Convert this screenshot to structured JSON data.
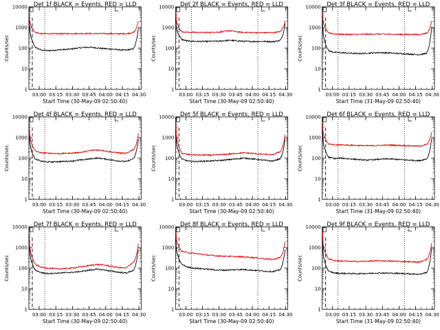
{
  "chart_data": [
    {
      "type": "line",
      "title": "Det 1f BLACK = Events, RED = LLD",
      "xlabel": "Start Time (30-May-09 02:50:40)",
      "ylabel": "Counts/sec",
      "yscale": "log",
      "ylim": [
        1,
        10000
      ],
      "yticks": [
        "1",
        "10",
        "100",
        "1000",
        "10000"
      ],
      "xticks": [
        "03:00",
        "03:15",
        "03:30",
        "03:45",
        "04:00",
        "04:15",
        "04:30"
      ],
      "dotted_lines": [
        "03:05",
        "04:05"
      ],
      "series": [
        {
          "color": "#000000",
          "y": [
            3000,
            110,
            80,
            76,
            78,
            84,
            86,
            92,
            100,
            108,
            110,
            104,
            96,
            92,
            88,
            82,
            80,
            90,
            900
          ]
        },
        {
          "color": "#dd0000",
          "y": [
            5500,
            580,
            500,
            500,
            500,
            500,
            505,
            505,
            510,
            510,
            510,
            510,
            505,
            505,
            500,
            500,
            500,
            560,
            2100
          ]
        }
      ]
    },
    {
      "type": "line",
      "title": "Det 2f BLACK = Events, RED = LLD",
      "xlabel": "Start Time (30-May-09 02:50:40)",
      "ylabel": "Counts/sec",
      "yscale": "log",
      "ylim": [
        1,
        10000
      ],
      "yticks": [
        "1",
        "10",
        "100",
        "1000",
        "10000"
      ],
      "xticks": [
        "03:00",
        "03:15",
        "03:30",
        "03:45",
        "04:00",
        "04:15",
        "04:30"
      ],
      "dotted_lines": [
        "03:05",
        "04:05"
      ],
      "series": [
        {
          "color": "#000000",
          "y": [
            3000,
            260,
            220,
            215,
            210,
            210,
            215,
            215,
            230,
            240,
            225,
            215,
            210,
            210,
            210,
            210,
            205,
            230,
            1500
          ]
        },
        {
          "color": "#dd0000",
          "y": [
            5500,
            620,
            580,
            590,
            560,
            570,
            580,
            590,
            650,
            700,
            620,
            580,
            570,
            560,
            560,
            560,
            560,
            620,
            2100
          ]
        }
      ]
    },
    {
      "type": "line",
      "title": "Det 3f BLACK = Events, RED = LLD",
      "xlabel": "Start Time (31-May-09 02:50:40)",
      "ylabel": "Counts/sec",
      "yscale": "log",
      "ylim": [
        1,
        10000
      ],
      "yticks": [
        "1",
        "10",
        "100",
        "1000",
        "10000"
      ],
      "xticks": [
        "03:00",
        "03:15",
        "03:30",
        "03:45",
        "04:00",
        "04:15",
        "04:30"
      ],
      "dotted_lines": [
        "03:05",
        "04:05"
      ],
      "series": [
        {
          "color": "#000000",
          "y": [
            2500,
            75,
            62,
            60,
            58,
            56,
            54,
            56,
            58,
            60,
            60,
            58,
            56,
            54,
            52,
            50,
            48,
            55,
            1000
          ]
        },
        {
          "color": "#dd0000",
          "y": [
            5500,
            560,
            480,
            470,
            460,
            460,
            460,
            470,
            470,
            480,
            480,
            470,
            460,
            460,
            460,
            460,
            450,
            520,
            2100
          ]
        }
      ]
    },
    {
      "type": "line",
      "title": "Det 4f BLACK = Events, RED = LLD",
      "xlabel": "Start Time (30-May-09 02:50:40)",
      "ylabel": "Counts/sec",
      "yscale": "log",
      "ylim": [
        1,
        10000
      ],
      "yticks": [
        "1",
        "10",
        "100",
        "1000",
        "10000"
      ],
      "xticks": [
        "03:00",
        "03:15",
        "03:30",
        "03:45",
        "04:00",
        "04:15",
        "04:30"
      ],
      "dotted_lines": [
        "03:05",
        "04:05"
      ],
      "series": [
        {
          "color": "#000000",
          "y": [
            2500,
            90,
            70,
            65,
            66,
            68,
            70,
            72,
            78,
            84,
            92,
            100,
            96,
            86,
            78,
            72,
            68,
            90,
            800
          ]
        },
        {
          "color": "#dd0000",
          "y": [
            5000,
            220,
            180,
            175,
            170,
            165,
            170,
            175,
            185,
            200,
            230,
            250,
            240,
            210,
            190,
            175,
            170,
            250,
            1500
          ]
        }
      ]
    },
    {
      "type": "line",
      "title": "Det 5f BLACK = Events, RED = LLD",
      "xlabel": "Start Time (30-May-09 02:50:40)",
      "ylabel": "Counts/sec",
      "yscale": "log",
      "ylim": [
        1,
        10000
      ],
      "yticks": [
        "1",
        "10",
        "100",
        "1000",
        "10000"
      ],
      "xticks": [
        "03:00",
        "03:15",
        "03:30",
        "03:45",
        "04:00",
        "04:15",
        "04:30"
      ],
      "dotted_lines": [
        "03:05",
        "04:05"
      ],
      "series": [
        {
          "color": "#000000",
          "y": [
            2500,
            90,
            72,
            68,
            70,
            72,
            74,
            76,
            80,
            86,
            92,
            100,
            96,
            90,
            82,
            76,
            72,
            90,
            800
          ]
        },
        {
          "color": "#dd0000",
          "y": [
            5000,
            170,
            150,
            145,
            140,
            140,
            140,
            145,
            150,
            160,
            170,
            180,
            175,
            165,
            155,
            150,
            145,
            200,
            1300
          ]
        }
      ]
    },
    {
      "type": "line",
      "title": "Det 6f BLACK = Events, RED = LLD",
      "xlabel": "Start Time (31-May-09 02:50:40)",
      "ylabel": "Counts/sec",
      "yscale": "log",
      "ylim": [
        1,
        10000
      ],
      "yticks": [
        "1",
        "10",
        "100",
        "1000",
        "10000"
      ],
      "xticks": [
        "03:00",
        "03:15",
        "03:30",
        "03:45",
        "04:00",
        "04:15",
        "04:30"
      ],
      "dotted_lines": [
        "03:05",
        "04:05"
      ],
      "series": [
        {
          "color": "#000000",
          "y": [
            2500,
            110,
            95,
            100,
            95,
            90,
            85,
            80,
            82,
            86,
            90,
            92,
            88,
            84,
            80,
            78,
            75,
            90,
            900
          ]
        },
        {
          "color": "#dd0000",
          "y": [
            5500,
            480,
            430,
            440,
            430,
            420,
            410,
            400,
            400,
            410,
            420,
            430,
            420,
            410,
            400,
            390,
            380,
            450,
            1800
          ]
        }
      ]
    },
    {
      "type": "line",
      "title": "Det 7f BLACK = Events, RED = LLD",
      "xlabel": "Start Time (30-May-09 02:50:40)",
      "ylabel": "Counts/sec",
      "yscale": "log",
      "ylim": [
        1,
        10000
      ],
      "yticks": [
        "1",
        "10",
        "100",
        "1000",
        "10000"
      ],
      "xticks": [
        "03:00",
        "03:15",
        "03:30",
        "03:45",
        "04:00",
        "04:15",
        "04:30"
      ],
      "dotted_lines": [
        "03:05",
        "04:05"
      ],
      "series": [
        {
          "color": "#000000",
          "y": [
            2500,
            80,
            60,
            55,
            56,
            58,
            60,
            62,
            66,
            72,
            80,
            88,
            84,
            76,
            68,
            62,
            58,
            75,
            800
          ]
        },
        {
          "color": "#dd0000",
          "y": [
            5000,
            150,
            110,
            100,
            95,
            92,
            95,
            100,
            110,
            120,
            135,
            150,
            145,
            130,
            115,
            105,
            100,
            180,
            1500
          ]
        }
      ]
    },
    {
      "type": "line",
      "title": "Det 8f BLACK = Events, RED = LLD",
      "xlabel": "Start Time (30-May-09 02:50:40)",
      "ylabel": "Counts/sec",
      "yscale": "log",
      "ylim": [
        1,
        10000
      ],
      "yticks": [
        "1",
        "10",
        "100",
        "1000",
        "10000"
      ],
      "xticks": [
        "03:00",
        "03:15",
        "03:30",
        "03:45",
        "04:00",
        "04:15",
        "04:30"
      ],
      "dotted_lines": [
        "03:05",
        "04:05"
      ],
      "series": [
        {
          "color": "#000000",
          "y": [
            3000,
            150,
            110,
            100,
            95,
            90,
            85,
            80,
            80,
            82,
            84,
            86,
            82,
            78,
            74,
            70,
            68,
            80,
            800
          ]
        },
        {
          "color": "#dd0000",
          "y": [
            6000,
            650,
            560,
            520,
            480,
            440,
            410,
            390,
            380,
            370,
            360,
            350,
            340,
            320,
            300,
            280,
            260,
            320,
            1800
          ]
        }
      ]
    },
    {
      "type": "line",
      "title": "Det 9f BLACK = Events, RED = LLD",
      "xlabel": "Start Time (31-May-09 02:50:40)",
      "ylabel": "Counts/sec",
      "yscale": "log",
      "ylim": [
        1,
        10000
      ],
      "yticks": [
        "1",
        "10",
        "100",
        "1000",
        "10000"
      ],
      "xticks": [
        "03:00",
        "03:15",
        "03:30",
        "03:45",
        "04:00",
        "04:15",
        "04:30"
      ],
      "dotted_lines": [
        "03:05",
        "04:05"
      ],
      "series": [
        {
          "color": "#000000",
          "y": [
            2500,
            70,
            58,
            56,
            55,
            54,
            54,
            55,
            56,
            58,
            58,
            57,
            56,
            55,
            54,
            52,
            50,
            60,
            900
          ]
        },
        {
          "color": "#dd0000",
          "y": [
            5500,
            280,
            230,
            220,
            215,
            210,
            210,
            215,
            220,
            225,
            225,
            220,
            215,
            210,
            205,
            200,
            195,
            260,
            1600
          ]
        }
      ]
    }
  ]
}
